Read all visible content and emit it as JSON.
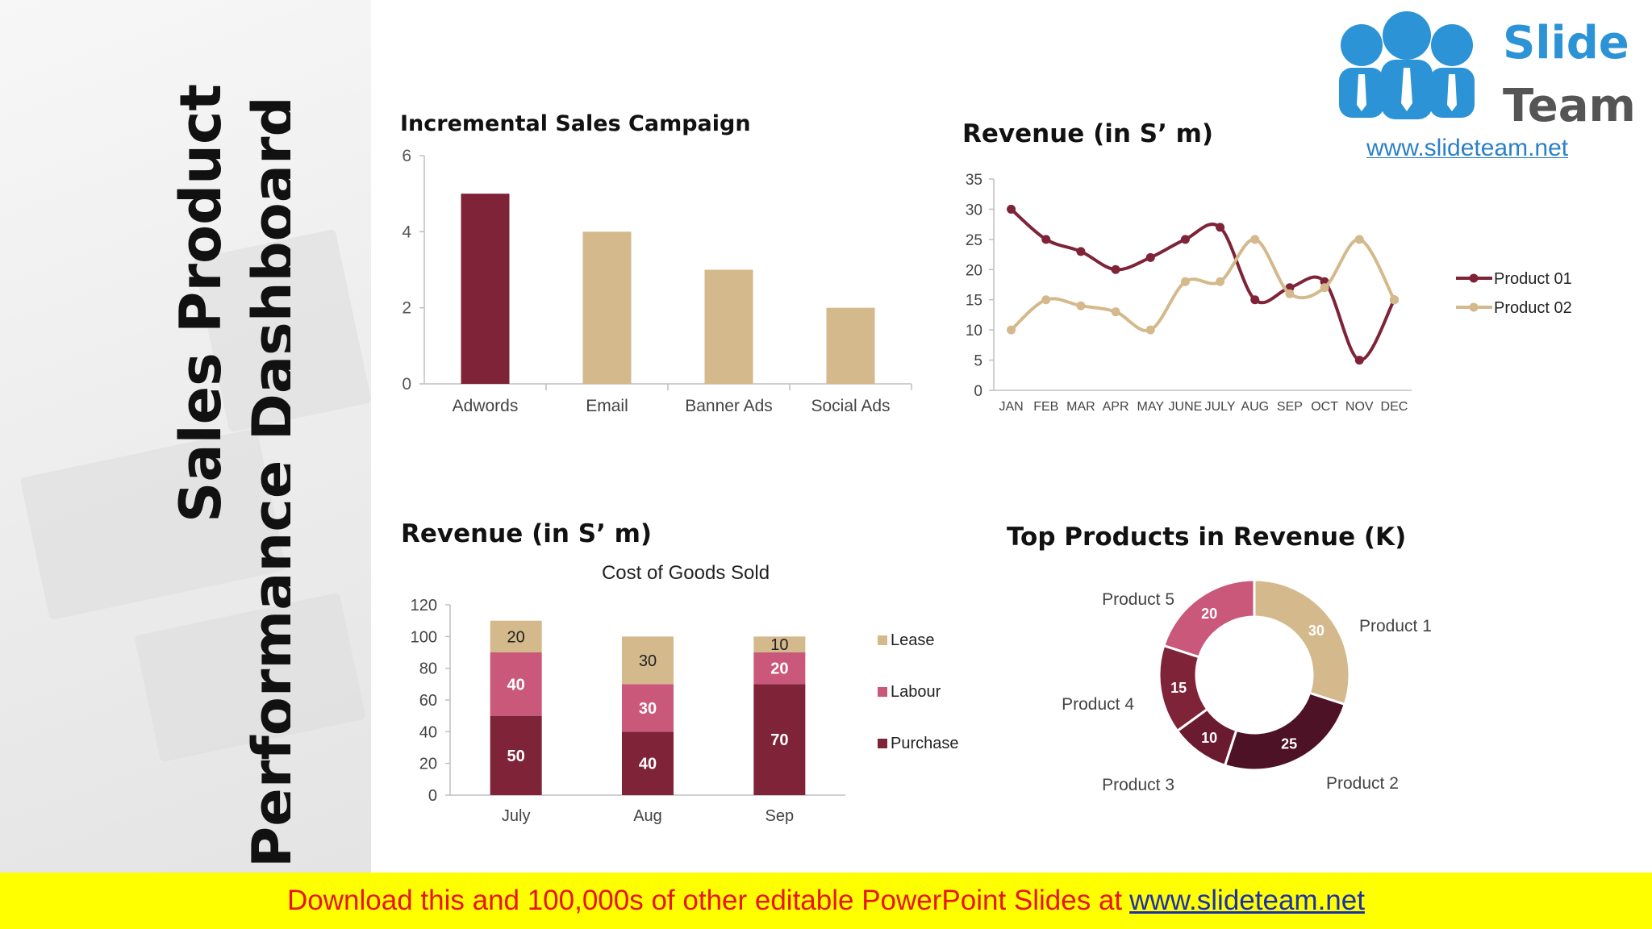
{
  "sidebar": {
    "title_line1": "Sales Product",
    "title_line2": "Performance Dashboard"
  },
  "logo": {
    "word1": "Slide",
    "word2": "Team",
    "url": "www.slideteam.net"
  },
  "banner": {
    "text": "Download this and 100,000s of other editable PowerPoint Slides at",
    "link": "www.slideteam.net"
  },
  "colors": {
    "maroon": "#7e2338",
    "tan": "#d3b98b",
    "pink": "#c9587a",
    "dark_maroon": "#4e1226",
    "banner_bg": "#ffff00",
    "banner_text": "#e8141a",
    "banner_link": "#1a2fb0"
  },
  "chart_data": [
    {
      "id": "incremental",
      "type": "bar",
      "title": "Incremental Sales Campaign",
      "categories": [
        "Adwords",
        "Email",
        "Banner Ads",
        "Social Ads"
      ],
      "values": [
        5,
        4,
        3,
        2
      ],
      "ylim": [
        0,
        6
      ],
      "yticks": [
        0,
        2,
        4,
        6
      ],
      "bar_colors": [
        "#7e2338",
        "#d3b98b",
        "#d3b98b",
        "#d3b98b"
      ],
      "grid": false
    },
    {
      "id": "revenue_line",
      "type": "line",
      "title": "Revenue (in S’ m)",
      "x": [
        "JAN",
        "FEB",
        "MAR",
        "APR",
        "MAY",
        "JUNE",
        "JULY",
        "AUG",
        "SEP",
        "OCT",
        "NOV",
        "DEC"
      ],
      "series": [
        {
          "name": "Product 01",
          "values": [
            30,
            25,
            23,
            20,
            22,
            25,
            27,
            15,
            17,
            18,
            5,
            15
          ],
          "color": "#7e2338"
        },
        {
          "name": "Product 02",
          "values": [
            10,
            15,
            14,
            13,
            10,
            18,
            18,
            25,
            16,
            17,
            25,
            15
          ],
          "color": "#d3b98b"
        }
      ],
      "ylim": [
        0,
        35
      ],
      "yticks": [
        0,
        5,
        10,
        15,
        20,
        25,
        30,
        35
      ],
      "legend": "right",
      "grid": false
    },
    {
      "id": "revenue_stacked",
      "type": "bar",
      "title": "Revenue (in S’ m)",
      "subtitle": "Cost of Goods Sold",
      "categories": [
        "July",
        "Aug",
        "Sep"
      ],
      "series": [
        {
          "name": "Purchase",
          "values": [
            50,
            40,
            70
          ],
          "color": "#7e2338"
        },
        {
          "name": "Labour",
          "values": [
            40,
            30,
            20
          ],
          "color": "#c9587a"
        },
        {
          "name": "Lease",
          "values": [
            20,
            30,
            10
          ],
          "color": "#d3b98b"
        }
      ],
      "stacked": true,
      "ylim": [
        0,
        120
      ],
      "yticks": [
        0,
        20,
        40,
        60,
        80,
        100,
        120
      ],
      "legend": "right",
      "grid": false
    },
    {
      "id": "top_products",
      "type": "pie",
      "title": "Top Products in Revenue (K)",
      "donut": true,
      "slices": [
        {
          "label": "Product 1",
          "value": 30,
          "color": "#d3b98b"
        },
        {
          "label": "Product 2",
          "value": 25,
          "color": "#4e1226"
        },
        {
          "label": "Product 3",
          "value": 10,
          "color": "#6a1b30"
        },
        {
          "label": "Product 4",
          "value": 15,
          "color": "#7e2338"
        },
        {
          "label": "Product 5",
          "value": 20,
          "color": "#c9587a"
        }
      ]
    }
  ]
}
